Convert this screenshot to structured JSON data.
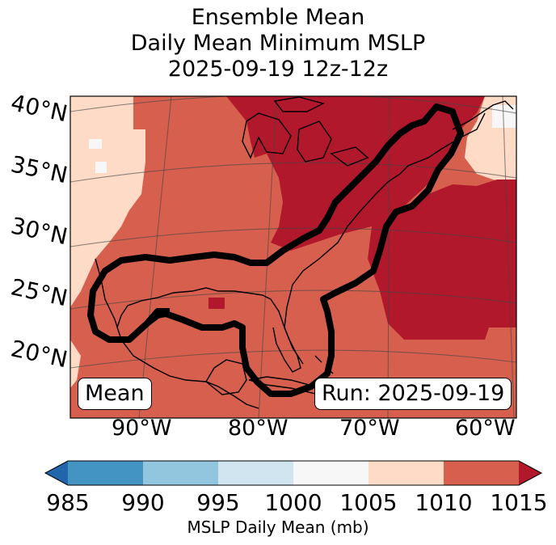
{
  "title": {
    "line1": "Ensemble Mean",
    "line2": "Daily Mean Minimum MSLP",
    "line3": "2025-09-19 12z-12z"
  },
  "map": {
    "lat_labels": [
      "40°N",
      "35°N",
      "30°N",
      "25°N",
      "20°N"
    ],
    "lon_labels": [
      "90°W",
      "80°W",
      "70°W",
      "60°W"
    ],
    "mean_badge": "Mean",
    "run_badge": "Run: 2025-09-19",
    "fill_colors": {
      "1000": "#f7f7f7",
      "1005": "#fddbc7",
      "1010": "#d6604d",
      "1015": "#b2182b"
    }
  },
  "colorbar": {
    "ticks": [
      "985",
      "990",
      "995",
      "1000",
      "1005",
      "1010",
      "1015"
    ],
    "colors": [
      "#2166ac",
      "#4393c3",
      "#92c5de",
      "#d1e5f0",
      "#f7f7f7",
      "#fddbc7",
      "#d6604d",
      "#b2182b"
    ],
    "label": "MSLP Daily Mean (mb)"
  }
}
